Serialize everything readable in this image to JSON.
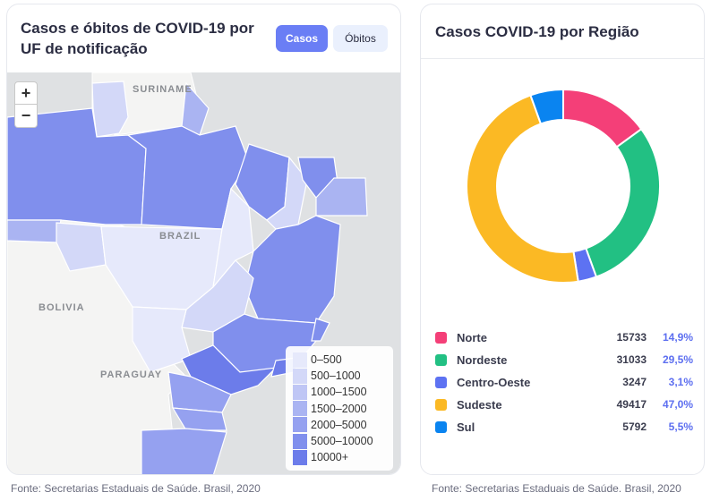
{
  "left_panel": {
    "title": "Casos e óbitos de COVID-19 por UF de notificação",
    "toggle": {
      "casos_label": "Casos",
      "obitos_label": "Óbitos",
      "active": "casos"
    },
    "zoom": {
      "in_label": "+",
      "out_label": "−"
    },
    "map_labels": {
      "suriname": "SURINAME",
      "brazil": "BRAZIL",
      "bolivia": "BOLIVIA",
      "paraguay": "PARAGUAY"
    },
    "legend": [
      {
        "label": "0–500",
        "color": "#e6e9fb"
      },
      {
        "label": "500–1000",
        "color": "#d3d8f8"
      },
      {
        "label": "1000–1500",
        "color": "#bfc6f5"
      },
      {
        "label": "1500–2000",
        "color": "#aab4f2"
      },
      {
        "label": "2000–5000",
        "color": "#95a1f0"
      },
      {
        "label": "5000–10000",
        "color": "#808fed"
      },
      {
        "label": "10000+",
        "color": "#6c7cea"
      }
    ],
    "footer": "Fonte: Secretarias Estaduais de Saúde. Brasil, 2020"
  },
  "right_panel": {
    "title": "Casos COVID-19 por Região",
    "footer": "Fonte: Secretarias Estaduais de Saúde. Brasil, 2020"
  },
  "chart_data": {
    "type": "pie",
    "variant": "donut",
    "title": "Casos COVID-19 por Região",
    "categories": [
      "Norte",
      "Nordeste",
      "Centro-Oeste",
      "Sudeste",
      "Sul"
    ],
    "values": [
      15733,
      31033,
      3247,
      49417,
      5792
    ],
    "percent_labels": [
      "14,9%",
      "29,5%",
      "3,1%",
      "47,0%",
      "5,5%"
    ],
    "colors": [
      "#f43f78",
      "#22c083",
      "#5d72f2",
      "#fbb924",
      "#0a84f0"
    ]
  }
}
